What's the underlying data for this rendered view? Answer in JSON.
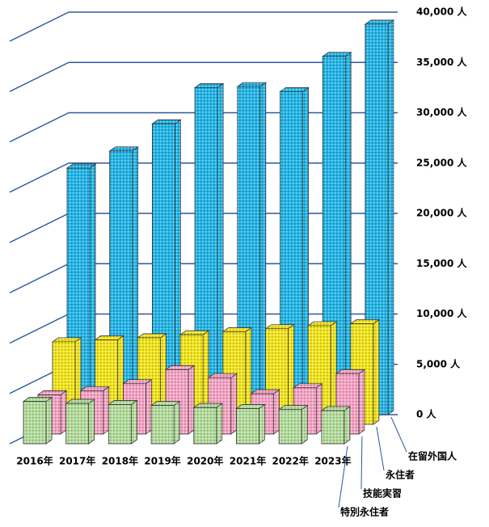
{
  "chart_data": {
    "type": "bar3d",
    "categories": [
      "2016年",
      "2017年",
      "2018年",
      "2019年",
      "2020年",
      "2021年",
      "2022年",
      "2023年"
    ],
    "series": [
      {
        "name": "在留外国人",
        "color": "#22b4e6",
        "values": [
          24500,
          26200,
          28900,
          32500,
          32600,
          32100,
          35600,
          38800
        ]
      },
      {
        "name": "永住者",
        "color": "#f2e41c",
        "values": [
          8200,
          8400,
          8600,
          8900,
          9200,
          9500,
          9800,
          10000
        ]
      },
      {
        "name": "技能実習",
        "color": "#f5a3c4",
        "values": [
          3900,
          4300,
          5000,
          6400,
          5600,
          4000,
          4600,
          6000
        ]
      },
      {
        "name": "特別永住者",
        "color": "#b3dc9c",
        "values": [
          4200,
          4000,
          3900,
          3800,
          3600,
          3500,
          3400,
          3300
        ]
      }
    ],
    "ylim": [
      0,
      40000
    ],
    "yticks": [
      {
        "value": 0,
        "label": "0 人"
      },
      {
        "value": 5000,
        "label": "5,000 人"
      },
      {
        "value": 10000,
        "label": "10,000 人"
      },
      {
        "value": 15000,
        "label": "15,000 人"
      },
      {
        "value": 20000,
        "label": "20,000 人"
      },
      {
        "value": 25000,
        "label": "25,000 人"
      },
      {
        "value": 30000,
        "label": "30,000 人"
      },
      {
        "value": 35000,
        "label": "35,000 人"
      },
      {
        "value": 40000,
        "label": "40,000 人"
      }
    ],
    "grid": true
  }
}
